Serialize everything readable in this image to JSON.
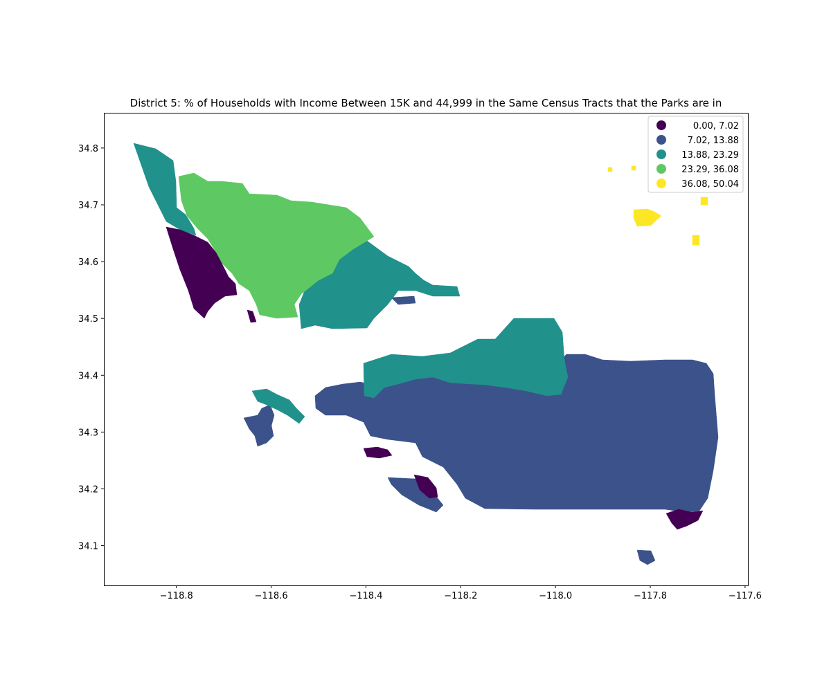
{
  "title": "District 5: % of Households with Income Between 15K and 44,999 in the Same Census Tracts that the Parks are in",
  "axes": {
    "x_ticks": [
      "−118.8",
      "−118.6",
      "−118.4",
      "−118.2",
      "−118.0",
      "−117.8",
      "−117.6"
    ],
    "y_ticks": [
      "34.1",
      "34.2",
      "34.3",
      "34.4",
      "34.5",
      "34.6",
      "34.7",
      "34.8"
    ],
    "x_range": [
      -118.953,
      -117.594
    ],
    "y_range": [
      34.03,
      34.862
    ]
  },
  "legend": {
    "placement": "top-right",
    "items": [
      {
        "label": "0.00,  7.02",
        "color": "#440154"
      },
      {
        "label": "7.02, 13.88",
        "color": "#3b528b"
      },
      {
        "label": "13.88, 23.29",
        "color": "#21918c"
      },
      {
        "label": "23.29, 36.08",
        "color": "#5ec962"
      },
      {
        "label": "36.08, 50.04",
        "color": "#fde725"
      }
    ]
  },
  "chart_data": {
    "type": "choropleth map",
    "title": "District 5: % of Households with Income Between 15K and 44,999 in the Same Census Tracts that the Parks are in",
    "xlabel": "",
    "ylabel": "",
    "xlim": [
      -118.953,
      -117.594
    ],
    "ylim": [
      34.03,
      34.862
    ],
    "classes": [
      {
        "range": [
          0.0,
          7.02
        ],
        "color": "#440154"
      },
      {
        "range": [
          7.02,
          13.88
        ],
        "color": "#3b528b"
      },
      {
        "range": [
          13.88,
          23.29
        ],
        "color": "#21918c"
      },
      {
        "range": [
          23.29,
          36.08
        ],
        "color": "#5ec962"
      },
      {
        "range": [
          36.08,
          50.04
        ],
        "color": "#fde725"
      }
    ]
  }
}
